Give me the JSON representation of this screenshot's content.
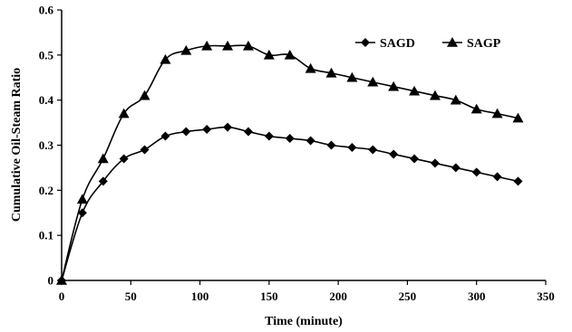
{
  "chart_data": {
    "type": "line",
    "title": "",
    "xlabel": "Time (minute)",
    "ylabel": "Cumulative Oil-Steam Ratio",
    "xlim": [
      0,
      350
    ],
    "ylim": [
      0,
      0.6
    ],
    "x_ticks": [
      "0",
      "50",
      "100",
      "150",
      "200",
      "250",
      "300",
      "350"
    ],
    "y_ticks": [
      "0",
      "0.1",
      "0.2",
      "0.3",
      "0.4",
      "0.5",
      "0.6"
    ],
    "grid": false,
    "legend_position": "top-right",
    "x": [
      0,
      15,
      30,
      45,
      60,
      75,
      90,
      105,
      120,
      135,
      150,
      165,
      180,
      195,
      210,
      225,
      240,
      255,
      270,
      285,
      300,
      315,
      330
    ],
    "series": [
      {
        "name": "SAGD",
        "marker": "diamond",
        "color": "#000000",
        "values": [
          0,
          0.15,
          0.22,
          0.27,
          0.29,
          0.32,
          0.33,
          0.335,
          0.34,
          0.33,
          0.32,
          0.315,
          0.31,
          0.3,
          0.295,
          0.29,
          0.28,
          0.27,
          0.26,
          0.25,
          0.24,
          0.23,
          0.22
        ]
      },
      {
        "name": "SAGP",
        "marker": "triangle",
        "color": "#000000",
        "values": [
          0,
          0.18,
          0.27,
          0.37,
          0.41,
          0.49,
          0.51,
          0.52,
          0.52,
          0.52,
          0.5,
          0.5,
          0.47,
          0.46,
          0.45,
          0.44,
          0.43,
          0.42,
          0.41,
          0.4,
          0.38,
          0.37,
          0.36
        ]
      }
    ]
  }
}
